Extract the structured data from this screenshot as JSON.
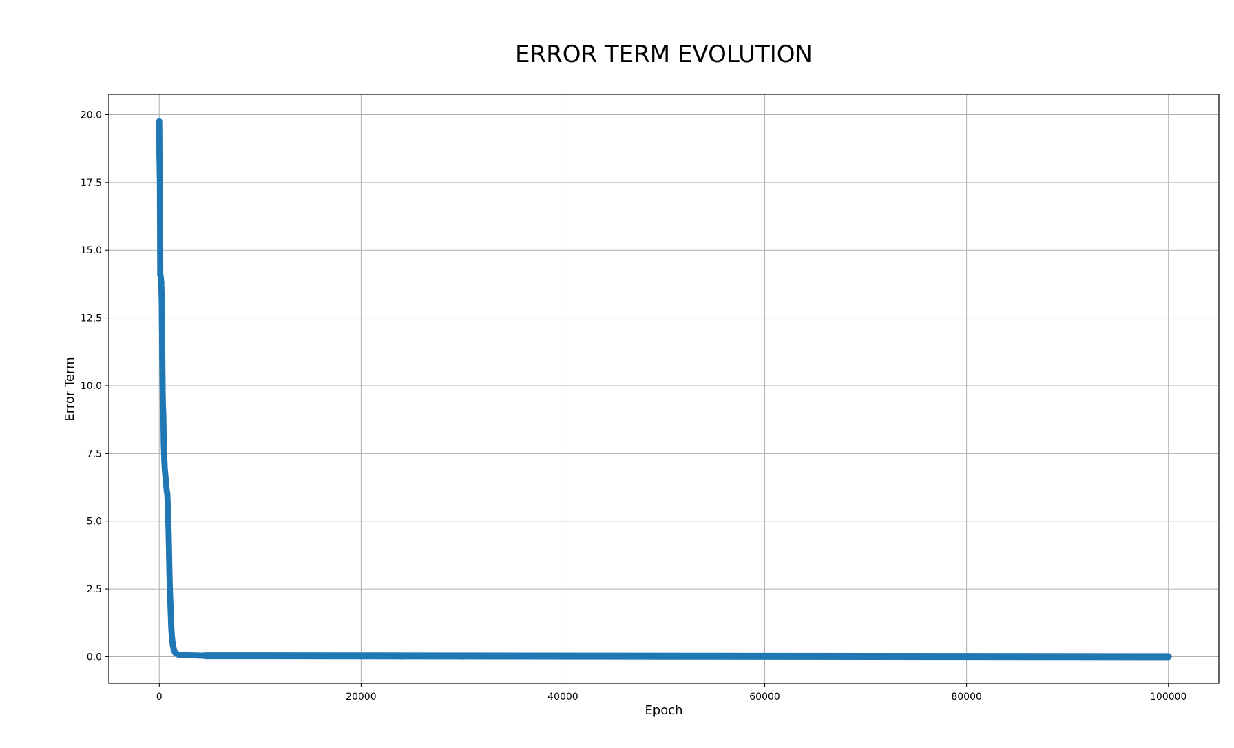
{
  "chart_data": {
    "type": "line",
    "title": "ERROR TERM EVOLUTION",
    "xlabel": "Epoch",
    "ylabel": "Error Term",
    "xlim": [
      -5000,
      105000
    ],
    "ylim": [
      -0.98,
      20.75
    ],
    "grid": true,
    "markers": true,
    "x_ticks": [
      0,
      20000,
      40000,
      60000,
      80000,
      100000
    ],
    "x_tick_labels": [
      "0",
      "20000",
      "40000",
      "60000",
      "80000",
      "100000"
    ],
    "y_ticks": [
      0.0,
      2.5,
      5.0,
      7.5,
      10.0,
      12.5,
      15.0,
      17.5,
      20.0
    ],
    "y_tick_labels": [
      "0.0",
      "2.5",
      "5.0",
      "7.5",
      "10.0",
      "12.5",
      "15.0",
      "17.5",
      "20.0"
    ],
    "series": [
      {
        "color": "#1f77b4",
        "x": [
          0,
          20,
          40,
          60,
          80,
          100,
          150,
          200,
          250,
          300,
          350,
          400,
          450,
          500,
          550,
          600,
          650,
          700,
          750,
          800,
          850,
          900,
          950,
          1000,
          1050,
          1100,
          1150,
          1200,
          1250,
          1300,
          1350,
          1400,
          1450,
          1500,
          1550,
          1600,
          1650,
          1700,
          1800,
          1900,
          2000,
          2200,
          2400,
          2700,
          3000,
          3500,
          4000,
          4500,
          5000,
          6000,
          8000,
          10000,
          12000,
          15000,
          18000,
          20000,
          22000,
          23500,
          24000,
          30000,
          40000,
          50000,
          60000,
          70000,
          80000,
          90000,
          100000
        ],
        "y": [
          19.75,
          18.5,
          18.0,
          17.7,
          16.0,
          14.1,
          14.0,
          13.8,
          13.0,
          11.0,
          9.3,
          9.0,
          7.8,
          7.3,
          6.9,
          6.7,
          6.5,
          6.3,
          6.1,
          6.0,
          5.5,
          5.0,
          4.2,
          3.2,
          2.5,
          2.0,
          1.5,
          1.0,
          0.75,
          0.55,
          0.42,
          0.33,
          0.26,
          0.21,
          0.17,
          0.14,
          0.12,
          0.11,
          0.09,
          0.08,
          0.07,
          0.065,
          0.06,
          0.055,
          0.05,
          0.045,
          0.04,
          0.035,
          0.03,
          0.028,
          0.026,
          0.025,
          0.024,
          0.023,
          0.022,
          0.021,
          0.02,
          0.02,
          0.005,
          0.004,
          0.003,
          0.003,
          0.002,
          0.002,
          0.002,
          0.002,
          0.002
        ]
      }
    ]
  }
}
